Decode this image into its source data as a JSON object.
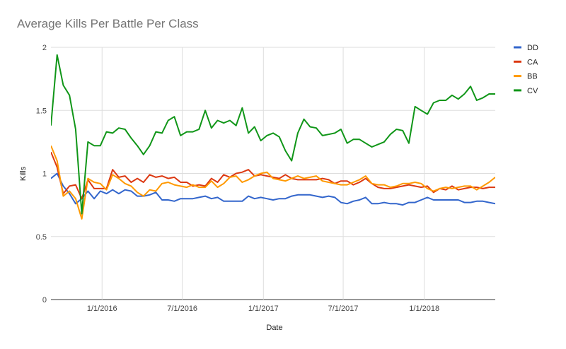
{
  "chart_data": {
    "type": "line",
    "title": "Average Kills Per Battle Per Class",
    "xlabel": "Date",
    "ylabel": "Kills",
    "ylim": [
      0,
      2
    ],
    "yticks": [
      "0",
      "0.5",
      "1",
      "1.5",
      "2"
    ],
    "xlim": [
      "2015-09-07",
      "2018-06-11"
    ],
    "xticks": [
      {
        "date": "2016-01-01",
        "label": "1/1/2016"
      },
      {
        "date": "2016-07-01",
        "label": "7/1/2016"
      },
      {
        "date": "2017-01-01",
        "label": "1/1/2017"
      },
      {
        "date": "2017-07-01",
        "label": "7/1/2017"
      },
      {
        "date": "2018-01-01",
        "label": "1/1/2018"
      }
    ],
    "grid": true,
    "legend_position": "right",
    "x": [
      "2015-09-07",
      "2015-09-21",
      "2015-10-05",
      "2015-10-19",
      "2015-11-02",
      "2015-11-16",
      "2015-11-30",
      "2015-12-14",
      "2015-12-28",
      "2016-01-11",
      "2016-01-25",
      "2016-02-08",
      "2016-02-22",
      "2016-03-07",
      "2016-03-21",
      "2016-04-04",
      "2016-04-18",
      "2016-05-02",
      "2016-05-16",
      "2016-05-30",
      "2016-06-13",
      "2016-06-27",
      "2016-07-11",
      "2016-07-25",
      "2016-08-08",
      "2016-08-22",
      "2016-09-05",
      "2016-09-19",
      "2016-10-03",
      "2016-10-17",
      "2016-10-31",
      "2016-11-14",
      "2016-11-28",
      "2016-12-12",
      "2016-12-26",
      "2017-01-09",
      "2017-01-23",
      "2017-02-06",
      "2017-02-20",
      "2017-03-06",
      "2017-03-20",
      "2017-04-03",
      "2017-04-17",
      "2017-05-01",
      "2017-05-15",
      "2017-05-29",
      "2017-06-12",
      "2017-06-26",
      "2017-07-10",
      "2017-07-24",
      "2017-08-07",
      "2017-08-21",
      "2017-09-04",
      "2017-09-18",
      "2017-10-02",
      "2017-10-16",
      "2017-10-30",
      "2017-11-13",
      "2017-11-27",
      "2017-12-11",
      "2017-12-25",
      "2018-01-08",
      "2018-01-22",
      "2018-02-05",
      "2018-02-19",
      "2018-03-05",
      "2018-03-19",
      "2018-04-02",
      "2018-04-16",
      "2018-04-30",
      "2018-05-14",
      "2018-05-28",
      "2018-06-11"
    ],
    "series": [
      {
        "name": "DD",
        "color": "#3366cc",
        "values": [
          0.96,
          1.0,
          0.9,
          0.84,
          0.76,
          0.8,
          0.86,
          0.8,
          0.86,
          0.84,
          0.87,
          0.84,
          0.87,
          0.86,
          0.82,
          0.82,
          0.83,
          0.85,
          0.79,
          0.79,
          0.78,
          0.8,
          0.8,
          0.8,
          0.81,
          0.82,
          0.8,
          0.81,
          0.78,
          0.78,
          0.78,
          0.78,
          0.82,
          0.8,
          0.81,
          0.8,
          0.79,
          0.8,
          0.8,
          0.82,
          0.83,
          0.83,
          0.83,
          0.82,
          0.81,
          0.82,
          0.81,
          0.77,
          0.76,
          0.78,
          0.79,
          0.81,
          0.76,
          0.76,
          0.77,
          0.76,
          0.76,
          0.75,
          0.77,
          0.77,
          0.79,
          0.81,
          0.79,
          0.79,
          0.79,
          0.79,
          0.79,
          0.77,
          0.77,
          0.78,
          0.78,
          0.77,
          0.76
        ]
      },
      {
        "name": "CA",
        "color": "#dc3912",
        "values": [
          1.17,
          1.05,
          0.84,
          0.9,
          0.91,
          0.8,
          0.95,
          0.88,
          0.88,
          0.88,
          1.03,
          0.97,
          0.98,
          0.93,
          0.96,
          0.93,
          0.99,
          0.97,
          0.98,
          0.96,
          0.97,
          0.93,
          0.93,
          0.9,
          0.91,
          0.9,
          0.96,
          0.93,
          0.99,
          0.97,
          1.0,
          1.01,
          1.03,
          0.98,
          0.99,
          0.98,
          0.97,
          0.96,
          0.99,
          0.96,
          0.95,
          0.95,
          0.95,
          0.95,
          0.96,
          0.95,
          0.92,
          0.94,
          0.94,
          0.91,
          0.93,
          0.96,
          0.92,
          0.89,
          0.88,
          0.88,
          0.89,
          0.9,
          0.91,
          0.9,
          0.89,
          0.9,
          0.85,
          0.88,
          0.87,
          0.9,
          0.87,
          0.88,
          0.89,
          0.89,
          0.88,
          0.89,
          0.89
        ]
      },
      {
        "name": "BB",
        "color": "#ff9900",
        "values": [
          1.22,
          1.1,
          0.82,
          0.86,
          0.8,
          0.64,
          0.96,
          0.93,
          0.92,
          0.87,
          0.99,
          0.96,
          0.92,
          0.9,
          0.85,
          0.82,
          0.87,
          0.86,
          0.92,
          0.93,
          0.91,
          0.9,
          0.89,
          0.91,
          0.89,
          0.89,
          0.94,
          0.89,
          0.92,
          0.97,
          0.98,
          0.93,
          0.95,
          0.98,
          1.0,
          1.01,
          0.96,
          0.95,
          0.94,
          0.96,
          0.98,
          0.96,
          0.97,
          0.98,
          0.94,
          0.93,
          0.92,
          0.91,
          0.91,
          0.93,
          0.95,
          0.98,
          0.92,
          0.91,
          0.91,
          0.89,
          0.9,
          0.92,
          0.92,
          0.93,
          0.92,
          0.88,
          0.86,
          0.88,
          0.89,
          0.88,
          0.89,
          0.9,
          0.9,
          0.87,
          0.9,
          0.93,
          0.97
        ]
      },
      {
        "name": "CV",
        "color": "#109618",
        "values": [
          1.38,
          1.94,
          1.7,
          1.62,
          1.35,
          0.68,
          1.25,
          1.22,
          1.22,
          1.33,
          1.32,
          1.36,
          1.35,
          1.28,
          1.22,
          1.15,
          1.22,
          1.33,
          1.32,
          1.42,
          1.45,
          1.3,
          1.33,
          1.33,
          1.35,
          1.5,
          1.36,
          1.42,
          1.4,
          1.42,
          1.38,
          1.52,
          1.32,
          1.37,
          1.26,
          1.3,
          1.32,
          1.29,
          1.18,
          1.1,
          1.32,
          1.43,
          1.37,
          1.36,
          1.3,
          1.31,
          1.32,
          1.35,
          1.24,
          1.27,
          1.27,
          1.24,
          1.21,
          1.23,
          1.25,
          1.31,
          1.35,
          1.34,
          1.24,
          1.53,
          1.5,
          1.47,
          1.56,
          1.58,
          1.58,
          1.62,
          1.59,
          1.63,
          1.69,
          1.58,
          1.6,
          1.63,
          1.63
        ]
      }
    ]
  }
}
